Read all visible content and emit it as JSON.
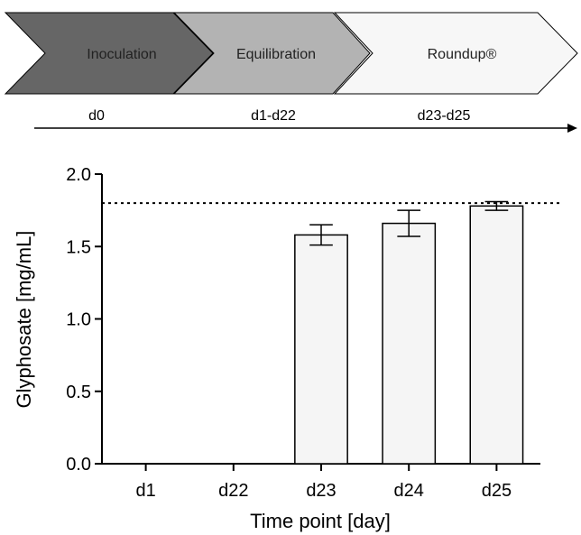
{
  "timeline": {
    "phases": [
      {
        "label": "Inoculation",
        "days": "d0",
        "fill": "#666666"
      },
      {
        "label": "Equilibration",
        "days": "d1-d22",
        "fill": "#b3b3b3"
      },
      {
        "label": "Roundup®",
        "days": "d23-d25",
        "fill": "#f7f7f7"
      }
    ]
  },
  "chart_data": {
    "type": "bar",
    "title": "",
    "xlabel": "Time point [day]",
    "ylabel": "Glyphosate [mg/mL]",
    "categories": [
      "d1",
      "d22",
      "d23",
      "d24",
      "d25"
    ],
    "values": [
      0,
      0,
      1.58,
      1.66,
      1.78
    ],
    "error": [
      0,
      0,
      0.07,
      0.09,
      0.03
    ],
    "ylim": [
      0,
      2.0
    ],
    "yticks": [
      "0.0",
      "0.5",
      "1.0",
      "1.5",
      "2.0"
    ],
    "reference_line": 1.8,
    "grid": false,
    "bar_fill": "#f5f5f5"
  }
}
